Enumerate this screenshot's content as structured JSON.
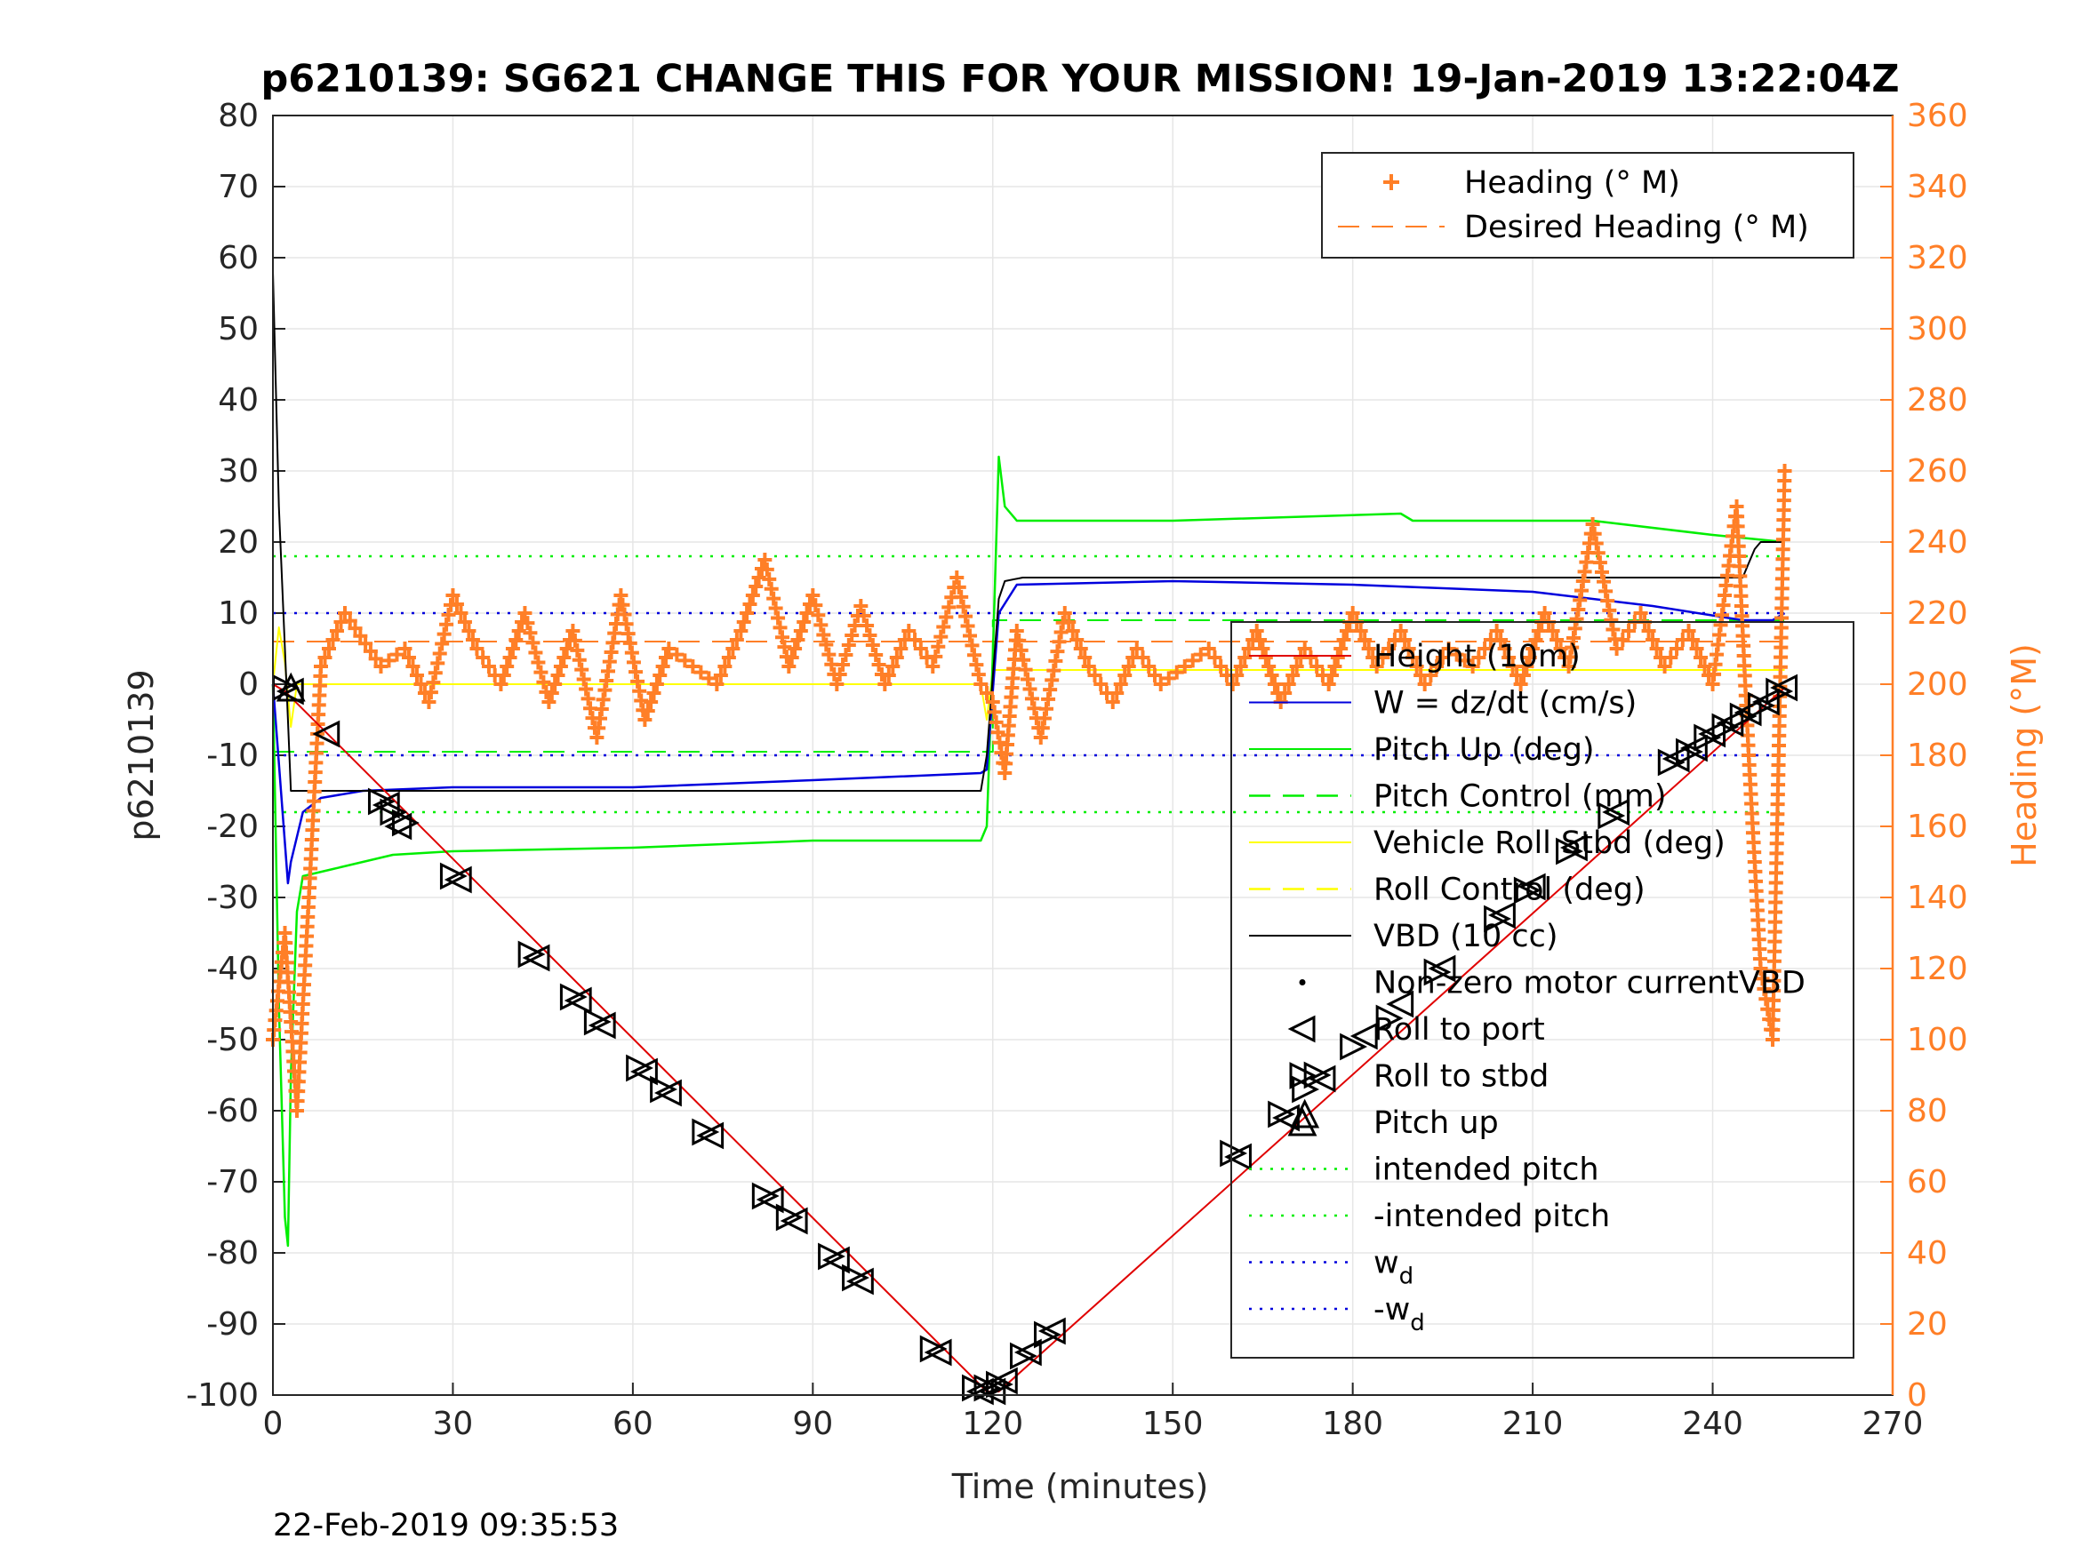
{
  "chart_data": {
    "type": "line",
    "title": "p6210139: SG621 CHANGE THIS FOR YOUR MISSION! 19-Jan-2019 13:22:04Z",
    "xlabel": "Time (minutes)",
    "ylabel": "p6210139",
    "y2label": "Heading (°M)",
    "xlim": [
      0,
      270
    ],
    "ylim": [
      -100,
      80
    ],
    "y2lim": [
      0,
      360
    ],
    "xticks": [
      "0",
      "30",
      "60",
      "90",
      "120",
      "150",
      "180",
      "210",
      "240",
      "270"
    ],
    "yticks": [
      "80",
      "70",
      "60",
      "50",
      "40",
      "30",
      "20",
      "10",
      "0",
      "-10",
      "-20",
      "-30",
      "-40",
      "-50",
      "-60",
      "-70",
      "-80",
      "-90",
      "-100"
    ],
    "y2ticks": [
      "360",
      "340",
      "320",
      "300",
      "280",
      "260",
      "240",
      "220",
      "200",
      "180",
      "160",
      "140",
      "120",
      "100",
      "80",
      "60",
      "40",
      "20",
      "0"
    ],
    "grid": true,
    "timestamp": "22-Feb-2019 09:35:53",
    "colors": {
      "heading": "#FF7F27",
      "w": "#0000DD",
      "pitch": "#00EE00",
      "roll": "#FFFF00",
      "height": "#E00000",
      "vbd": "#000000"
    },
    "legend_heading": [
      {
        "label": "Heading (° M)",
        "color": "#FF7F27",
        "style": "plus"
      },
      {
        "label": "Desired Heading (° M)",
        "color": "#FF7F27",
        "style": "dashed"
      }
    ],
    "legend_main": [
      {
        "label": "Height (10m)",
        "color": "#E00000",
        "style": "solid",
        "sub": ""
      },
      {
        "label": "W = dz/dt (cm/s)",
        "color": "#0000DD",
        "style": "solid",
        "sub": ""
      },
      {
        "label": "Pitch Up (deg)",
        "color": "#00EE00",
        "style": "solid",
        "sub": ""
      },
      {
        "label": "Pitch Control (mm)",
        "color": "#00EE00",
        "style": "dashed",
        "sub": ""
      },
      {
        "label": "Vehicle Roll Stbd (deg)",
        "color": "#FFFF00",
        "style": "solid",
        "sub": ""
      },
      {
        "label": "Roll Control (deg)",
        "color": "#FFFF00",
        "style": "dashed",
        "sub": ""
      },
      {
        "label": "VBD (10 cc)",
        "color": "#000000",
        "style": "solid",
        "sub": ""
      },
      {
        "label": "Non-zero motor currentVBD",
        "color": "#000000",
        "style": "dot",
        "sub": ""
      },
      {
        "label": "Roll to port",
        "color": "#000000",
        "style": "tri-left",
        "sub": ""
      },
      {
        "label": "Roll to stbd",
        "color": "#000000",
        "style": "tri-right",
        "sub": ""
      },
      {
        "label": "Pitch up",
        "color": "#000000",
        "style": "tri-up",
        "sub": ""
      },
      {
        "label": "intended pitch",
        "color": "#00EE00",
        "style": "dotted",
        "sub": ""
      },
      {
        "label": "-intended pitch",
        "color": "#00EE00",
        "style": "dotted",
        "sub": ""
      },
      {
        "label": "w",
        "color": "#0000DD",
        "style": "dotted",
        "sub": "d"
      },
      {
        "label": "-w",
        "color": "#0000DD",
        "style": "dotted",
        "sub": "d"
      }
    ],
    "series": [
      {
        "name": "Height (10m)",
        "axis": "left",
        "x": [
          0,
          2,
          119,
          121,
          252
        ],
        "y": [
          0,
          -1,
          -99.5,
          -99.5,
          -0.5
        ]
      },
      {
        "name": "W = dz/dt (cm/s)",
        "axis": "left",
        "x": [
          0,
          2.5,
          3,
          5,
          8,
          15,
          30,
          60,
          90,
          118,
          119,
          121,
          124,
          150,
          180,
          210,
          230,
          245,
          250,
          252
        ],
        "y": [
          0,
          -28,
          -25,
          -18,
          -16,
          -15,
          -14.5,
          -14.5,
          -13.5,
          -12.5,
          -12,
          10,
          14,
          14.5,
          14,
          13,
          11,
          9,
          9,
          10
        ]
      },
      {
        "name": "Pitch Up (deg)",
        "axis": "left",
        "x": [
          0,
          1,
          2,
          2.5,
          3,
          4,
          5,
          10,
          20,
          30,
          60,
          90,
          118,
          119,
          120,
          121,
          122,
          124,
          150,
          188,
          190,
          220,
          240,
          252
        ],
        "y": [
          0,
          -45,
          -75,
          -79,
          -55,
          -32,
          -27,
          -26,
          -24,
          -23.5,
          -23,
          -22,
          -22,
          -20,
          4,
          32,
          25,
          23,
          23,
          24,
          23,
          23,
          21,
          20
        ]
      },
      {
        "name": "Vehicle Roll Stbd (deg)",
        "axis": "left",
        "x": [
          0,
          1,
          2,
          3,
          4,
          5,
          8,
          20,
          60,
          100,
          118,
          119,
          120,
          122,
          125,
          150,
          180,
          210,
          240,
          252
        ],
        "y": [
          0,
          8,
          3,
          -6,
          0,
          0,
          0,
          0,
          0,
          0,
          0,
          -5,
          2,
          2,
          2,
          2,
          2,
          2,
          2,
          2
        ]
      },
      {
        "name": "VBD (10 cc)",
        "axis": "left",
        "x": [
          0,
          1,
          2,
          2.5,
          3,
          5,
          10,
          118,
          119,
          121,
          122,
          125,
          200,
          245,
          246,
          247,
          248,
          252
        ],
        "y": [
          58,
          25,
          5,
          -5,
          -15,
          -15,
          -15,
          -15,
          -10,
          12,
          14.5,
          15,
          15,
          15,
          17,
          19,
          20,
          20
        ]
      },
      {
        "name": "Heading (° M)",
        "axis": "right",
        "x": [
          0,
          2,
          4,
          6,
          8,
          12,
          18,
          22,
          26,
          30,
          34,
          38,
          42,
          46,
          50,
          54,
          58,
          62,
          66,
          70,
          74,
          78,
          82,
          86,
          90,
          94,
          98,
          102,
          106,
          110,
          114,
          118,
          120,
          122,
          124,
          128,
          132,
          136,
          140,
          144,
          148,
          152,
          156,
          160,
          164,
          168,
          172,
          176,
          180,
          184,
          188,
          192,
          196,
          200,
          204,
          208,
          212,
          216,
          220,
          224,
          228,
          232,
          236,
          240,
          244,
          246,
          248,
          250,
          252
        ],
        "y": [
          100,
          130,
          80,
          140,
          205,
          220,
          205,
          210,
          195,
          225,
          210,
          200,
          220,
          195,
          215,
          185,
          225,
          190,
          210,
          205,
          200,
          215,
          235,
          205,
          225,
          200,
          222,
          200,
          215,
          205,
          230,
          200,
          195,
          175,
          215,
          185,
          220,
          205,
          195,
          210,
          200,
          205,
          210,
          200,
          215,
          195,
          210,
          200,
          220,
          205,
          215,
          200,
          210,
          205,
          215,
          200,
          220,
          205,
          245,
          210,
          220,
          205,
          215,
          200,
          250,
          180,
          120,
          100,
          260
        ]
      },
      {
        "name": "Desired Heading (° M)",
        "axis": "right",
        "x": [
          0,
          252
        ],
        "y": [
          212,
          212
        ]
      },
      {
        "name": "Pitch Control (mm)",
        "axis": "left",
        "x": [
          0,
          120,
          120,
          252
        ],
        "y": [
          -9.5,
          -9.5,
          9,
          9
        ]
      },
      {
        "name": "intended pitch",
        "axis": "left",
        "x": [
          0,
          252
        ],
        "y": [
          18,
          18
        ]
      },
      {
        "name": "-intended pitch",
        "axis": "left",
        "x": [
          0,
          252
        ],
        "y": [
          -18,
          -18
        ]
      },
      {
        "name": "w_d",
        "axis": "left",
        "x": [
          0,
          252
        ],
        "y": [
          10,
          10
        ]
      },
      {
        "name": "-w_d",
        "axis": "left",
        "x": [
          0,
          252
        ],
        "y": [
          -10,
          -10
        ]
      }
    ],
    "markers": {
      "roll_to_port": {
        "x": [
          3,
          9,
          19,
          21,
          31,
          44,
          51,
          55,
          62,
          66,
          73,
          83,
          87,
          94,
          98,
          111,
          118,
          120,
          122,
          126,
          130,
          161,
          169,
          175,
          182,
          188,
          195,
          205,
          210,
          217,
          224,
          234,
          237,
          240,
          243,
          246,
          249,
          252
        ],
        "y": [
          -1,
          -7,
          -17,
          -20,
          -27.5,
          -38.5,
          -44.5,
          -48,
          -54.5,
          -57.5,
          -63.5,
          -72.5,
          -75.5,
          -81,
          -84,
          -94,
          -99.5,
          -99.5,
          -98,
          -94,
          -91,
          -66.5,
          -61,
          -55.5,
          -49.5,
          -45,
          -40,
          -32.5,
          -28.5,
          -23,
          -18,
          -10.5,
          -9,
          -7,
          -5.5,
          -4,
          -2.5,
          -0.5
        ]
      },
      "roll_to_stbd": {
        "x": [
          2,
          18,
          20,
          22,
          30,
          43,
          50,
          54,
          61,
          65,
          72,
          82,
          86,
          93,
          97,
          110,
          117,
          119,
          121,
          125,
          129,
          160,
          168,
          172,
          174,
          180,
          186,
          194,
          204,
          209,
          216,
          223,
          233,
          236,
          239,
          242,
          245,
          248,
          251
        ],
        "y": [
          -0.5,
          -16.5,
          -18,
          -19.5,
          -27,
          -38,
          -44,
          -47.5,
          -54,
          -57,
          -63,
          -72,
          -75,
          -80.5,
          -83.5,
          -93.5,
          -99,
          -99,
          -98.5,
          -94.5,
          -91.5,
          -66,
          -60.5,
          -57,
          -55,
          -51,
          -47,
          -40.5,
          -33,
          -29,
          -23.5,
          -18.5,
          -11,
          -9.5,
          -7.5,
          -6,
          -4.5,
          -3,
          -1
        ]
      },
      "pitch_up": {
        "x": [
          3,
          172
        ],
        "y": [
          -0.5,
          -60.5
        ]
      }
    }
  }
}
